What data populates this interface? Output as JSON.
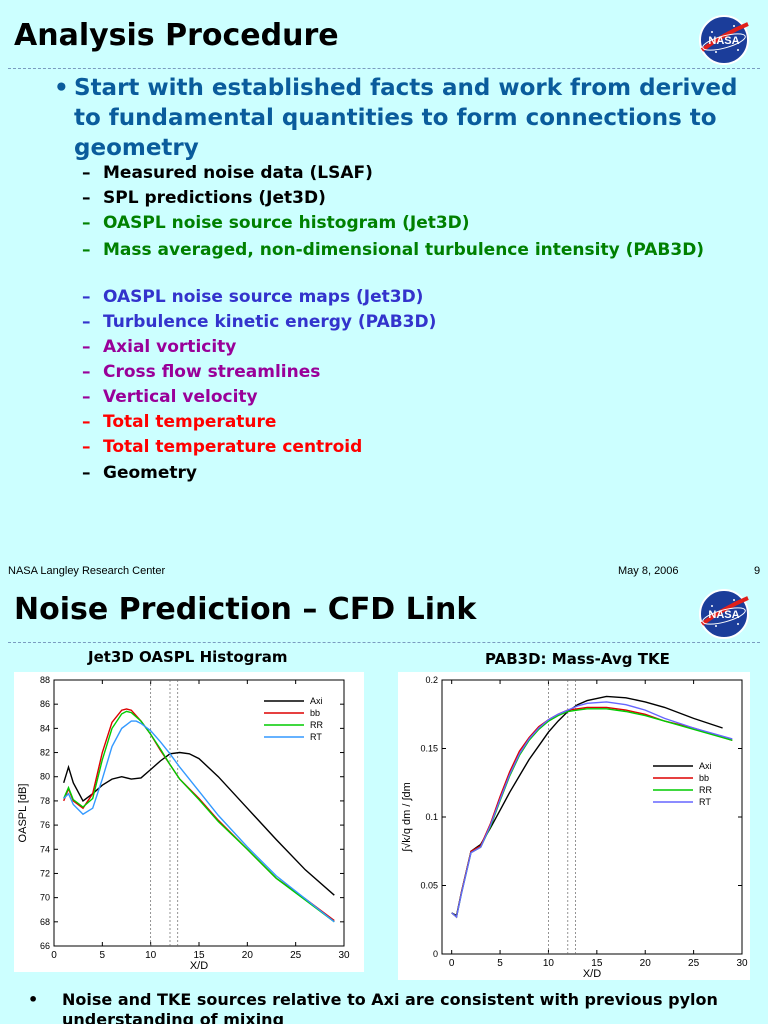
{
  "slide1": {
    "title": "Analysis Procedure",
    "logo_text": "NASA",
    "main_bullet": "Start with established facts and work from derived to fundamental quantities to form connections to geometry",
    "sub_items": [
      {
        "text": "Measured noise data (LSAF)",
        "color": "#000000"
      },
      {
        "text": "SPL predictions (Jet3D)",
        "color": "#000000"
      },
      {
        "text": "OASPL noise source histogram (Jet3D)",
        "color": "#008000"
      },
      {
        "text": "Mass averaged, non-dimensional turbulence intensity (PAB3D)",
        "color": "#008000"
      },
      {
        "text": "OASPL noise source maps (Jet3D)",
        "color": "#3333cc"
      },
      {
        "text": "Turbulence kinetic energy (PAB3D)",
        "color": "#3333cc"
      },
      {
        "text": "Axial vorticity",
        "color": "#990099"
      },
      {
        "text": "Cross flow streamlines",
        "color": "#990099"
      },
      {
        "text": "Vertical velocity",
        "color": "#990099"
      },
      {
        "text": "Total temperature",
        "color": "#ff0000"
      },
      {
        "text": "Total temperature centroid",
        "color": "#ff0000"
      },
      {
        "text": "Geometry",
        "color": "#000000"
      }
    ],
    "footer_left": "NASA Langley Research Center",
    "footer_date": "May 8, 2006",
    "footer_page": "9"
  },
  "slide2": {
    "title": "Noise Prediction – CFD Link",
    "logo_text": "NASA",
    "left_chart_title": "Jet3D OASPL Histogram",
    "right_chart_title": "PAB3D: Mass-Avg TKE",
    "bottom_bullet": "Noise and TKE sources relative to Axi are consistent with previous pylon understanding of mixing"
  },
  "chart_data": [
    {
      "type": "line",
      "title": "Jet3D OASPL Histogram",
      "xlabel": "X/D",
      "ylabel": "OASPL [dB]",
      "xlim": [
        0,
        30
      ],
      "ylim": [
        66,
        88
      ],
      "xticks": [
        0,
        5,
        10,
        15,
        20,
        25,
        30
      ],
      "yticks": [
        66,
        68,
        70,
        72,
        74,
        76,
        78,
        80,
        82,
        84,
        86,
        88
      ],
      "vlines": [
        10,
        12,
        12.8
      ],
      "legend_position": "top-right",
      "series": [
        {
          "name": "Axi",
          "color": "#000000",
          "x": [
            1,
            1.5,
            2,
            3,
            4,
            5,
            6,
            7,
            8,
            9,
            10,
            11,
            12,
            13,
            14,
            15,
            17,
            20,
            23,
            26,
            29
          ],
          "y": [
            79.5,
            80.8,
            79.5,
            78,
            78.6,
            79.3,
            79.8,
            80,
            79.8,
            79.9,
            80.6,
            81.3,
            81.9,
            82,
            81.9,
            81.5,
            80,
            77.4,
            74.8,
            72.3,
            70.2
          ]
        },
        {
          "name": "bb",
          "color": "#dd0000",
          "x": [
            1,
            1.5,
            2,
            3,
            4,
            5,
            6,
            7,
            7.5,
            8,
            9,
            10,
            11,
            12,
            13,
            15,
            17,
            20,
            23,
            26,
            29
          ],
          "y": [
            78,
            79,
            78,
            77.4,
            78.6,
            82,
            84.5,
            85.5,
            85.6,
            85.5,
            84.6,
            83.5,
            82.2,
            81,
            79.8,
            78.2,
            76.4,
            74,
            71.6,
            69.9,
            68.1
          ]
        },
        {
          "name": "RR",
          "color": "#00cc00",
          "x": [
            1,
            1.5,
            2,
            3,
            4,
            5,
            6,
            7,
            7.5,
            8,
            9,
            10,
            11,
            12,
            13,
            15,
            17,
            20,
            23,
            26,
            29
          ],
          "y": [
            78.2,
            79.1,
            78.1,
            77.5,
            78.2,
            81.4,
            84,
            85.2,
            85.4,
            85.3,
            84.6,
            83.5,
            82.3,
            81,
            79.8,
            78.1,
            76.3,
            74,
            71.6,
            69.8,
            68
          ]
        },
        {
          "name": "RT",
          "color": "#3399ff",
          "x": [
            1,
            1.5,
            2,
            3,
            4,
            5,
            6,
            7,
            8,
            8.5,
            9,
            10,
            11,
            12,
            13,
            15,
            17,
            20,
            23,
            26,
            29
          ],
          "y": [
            78.2,
            78.6,
            77.7,
            76.9,
            77.4,
            79.8,
            82.5,
            84,
            84.6,
            84.6,
            84.4,
            83.8,
            82.9,
            81.9,
            80.8,
            78.8,
            76.8,
            74.2,
            71.8,
            69.9,
            68
          ]
        }
      ]
    },
    {
      "type": "line",
      "title": "PAB3D: Mass-Avg TKE",
      "xlabel": "X/D",
      "ylabel": "∫√k/q dm / ∫dm",
      "xlim": [
        -1,
        30
      ],
      "ylim": [
        0,
        0.2
      ],
      "xticks": [
        0,
        5,
        10,
        15,
        20,
        25,
        30
      ],
      "yticks": [
        0,
        0.05,
        0.1,
        0.15,
        0.2
      ],
      "vlines": [
        10,
        12,
        12.8
      ],
      "legend_position": "right",
      "series": [
        {
          "name": "Axi",
          "color": "#000000",
          "x": [
            0,
            0.5,
            1,
            2,
            3,
            4,
            5,
            6,
            7,
            8,
            9,
            10,
            11,
            12,
            13,
            14,
            16,
            18,
            20,
            22,
            25,
            28
          ],
          "y": [
            0.03,
            0.028,
            0.045,
            0.075,
            0.08,
            0.092,
            0.105,
            0.118,
            0.13,
            0.142,
            0.152,
            0.162,
            0.17,
            0.177,
            0.182,
            0.185,
            0.188,
            0.187,
            0.184,
            0.18,
            0.172,
            0.165
          ]
        },
        {
          "name": "bb",
          "color": "#dd0000",
          "x": [
            0,
            0.5,
            1,
            2,
            3,
            4,
            5,
            6,
            7,
            8,
            9,
            10,
            11,
            12,
            13,
            14,
            16,
            18,
            20,
            22,
            25,
            29
          ],
          "y": [
            0.03,
            0.027,
            0.045,
            0.075,
            0.079,
            0.095,
            0.115,
            0.133,
            0.148,
            0.158,
            0.166,
            0.171,
            0.175,
            0.178,
            0.179,
            0.18,
            0.18,
            0.178,
            0.175,
            0.17,
            0.165,
            0.156
          ]
        },
        {
          "name": "RR",
          "color": "#00cc00",
          "x": [
            0,
            0.5,
            1,
            2,
            3,
            4,
            5,
            6,
            7,
            8,
            9,
            10,
            11,
            12,
            13,
            14,
            16,
            18,
            20,
            22,
            25,
            29
          ],
          "y": [
            0.03,
            0.027,
            0.044,
            0.074,
            0.078,
            0.093,
            0.112,
            0.13,
            0.145,
            0.156,
            0.164,
            0.17,
            0.174,
            0.177,
            0.178,
            0.179,
            0.179,
            0.177,
            0.174,
            0.17,
            0.164,
            0.156
          ]
        },
        {
          "name": "RT",
          "color": "#6666ff",
          "x": [
            0,
            0.5,
            1,
            2,
            3,
            4,
            5,
            6,
            7,
            8,
            9,
            10,
            11,
            12,
            13,
            14,
            16,
            18,
            20,
            22,
            25,
            29
          ],
          "y": [
            0.03,
            0.027,
            0.044,
            0.074,
            0.078,
            0.094,
            0.113,
            0.131,
            0.146,
            0.157,
            0.165,
            0.171,
            0.175,
            0.178,
            0.181,
            0.183,
            0.184,
            0.182,
            0.178,
            0.172,
            0.165,
            0.157
          ]
        }
      ]
    }
  ]
}
